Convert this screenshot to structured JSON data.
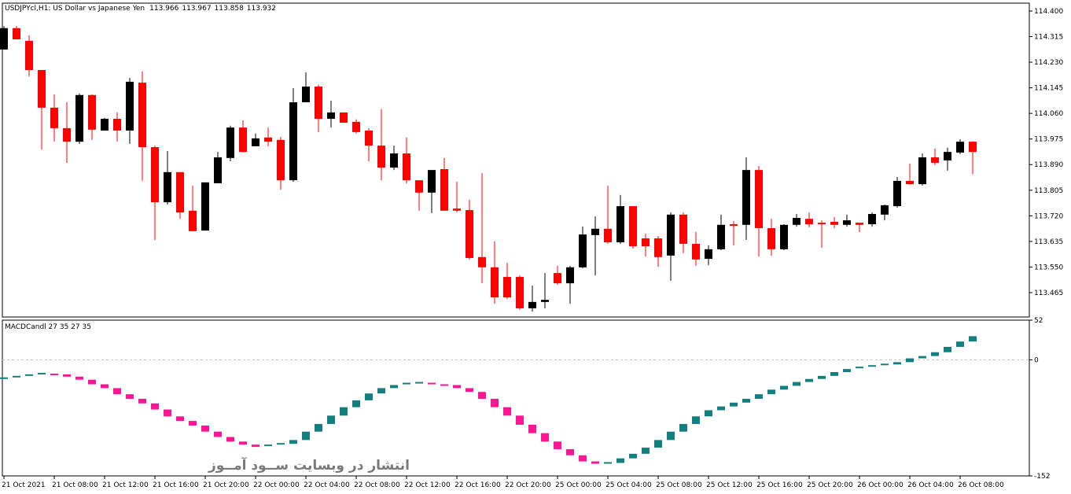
{
  "chart_data": [
    {
      "type": "candlestick",
      "title": "USDJPYcl,H1:  US Dollar vs Japanese Yen",
      "watermark": "انتشار در وبسایت  ســود آمــوز",
      "up_color": "#000000",
      "down_color": "#ff0000",
      "categories": [
        "21 Oct 2021",
        null,
        null,
        null,
        "21 Oct 08:00",
        null,
        null,
        null,
        "21 Oct 12:00",
        null,
        null,
        null,
        "21 Oct 16:00",
        null,
        null,
        null,
        "21 Oct 20:00",
        null,
        null,
        null,
        "22 Oct 00:00",
        null,
        null,
        null,
        "22 Oct 04:00",
        null,
        null,
        null,
        "22 Oct 08:00",
        null,
        null,
        null,
        "22 Oct 12:00",
        null,
        null,
        null,
        "22 Oct 16:00",
        null,
        null,
        null,
        "22 Oct 20:00",
        null,
        null,
        null,
        "25 Oct 00:00",
        null,
        null,
        null,
        "25 Oct 04:00",
        null,
        null,
        null,
        "25 Oct 08:00",
        null,
        null,
        null,
        "25 Oct 12:00",
        null,
        null,
        null,
        "25 Oct 16:00",
        null,
        null,
        null,
        "25 Oct 20:00",
        null,
        null,
        null,
        "26 Oct 00:00",
        null,
        null,
        null,
        "26 Oct 04:00",
        null,
        null,
        null,
        "26 Oct 08:00",
        null
      ],
      "open": [
        114.272,
        114.343,
        114.301,
        114.204,
        114.079,
        114.011,
        113.966,
        114.121,
        114.003,
        114.042,
        114.003,
        114.162,
        113.948,
        113.765,
        113.865,
        113.737,
        113.671,
        113.828,
        113.912,
        114.013,
        113.951,
        113.98,
        113.972,
        113.838,
        114.097,
        114.149,
        114.042,
        114.063,
        114.032,
        114.003,
        113.953,
        113.88,
        113.927,
        113.838,
        113.797,
        113.875,
        113.744,
        113.739,
        113.583,
        113.549,
        113.517,
        113.517,
        113.413,
        113.434,
        113.53,
        113.496,
        113.549,
        113.656,
        113.677,
        113.632,
        113.752,
        113.645,
        113.645,
        113.588,
        113.724,
        113.627,
        113.577,
        113.609,
        113.692,
        113.69,
        113.872,
        113.679,
        113.609,
        113.69,
        113.71,
        113.697,
        113.7,
        113.69,
        113.697,
        113.692,
        113.724,
        113.752,
        113.836,
        113.825,
        113.914,
        113.904,
        113.93,
        113.966
      ],
      "high": [
        114.35,
        114.35,
        114.319,
        114.204,
        114.123,
        114.097,
        114.126,
        114.123,
        114.045,
        114.063,
        114.178,
        114.199,
        113.953,
        113.935,
        113.865,
        113.82,
        113.831,
        113.932,
        114.019,
        114.037,
        113.993,
        114.013,
        113.982,
        114.144,
        114.196,
        114.155,
        114.102,
        114.063,
        114.04,
        114.011,
        114.074,
        113.953,
        113.98,
        113.838,
        113.872,
        113.912,
        113.833,
        113.773,
        113.862,
        113.635,
        113.564,
        113.522,
        113.488,
        113.53,
        113.554,
        113.554,
        113.684,
        113.718,
        113.82,
        113.789,
        113.752,
        113.661,
        113.653,
        113.731,
        113.731,
        113.666,
        113.622,
        113.724,
        113.703,
        113.914,
        113.885,
        113.71,
        113.692,
        113.726,
        113.731,
        113.705,
        113.716,
        113.724,
        113.697,
        113.731,
        113.757,
        113.849,
        113.893,
        113.927,
        113.943,
        113.946,
        113.974,
        113.967
      ],
      "low": [
        114.272,
        114.306,
        114.183,
        113.94,
        113.966,
        113.896,
        113.959,
        113.972,
        114.003,
        113.966,
        113.959,
        113.836,
        113.64,
        113.757,
        113.71,
        113.669,
        113.671,
        113.828,
        113.901,
        113.93,
        113.951,
        113.951,
        113.807,
        113.833,
        114.097,
        113.998,
        114.013,
        114.029,
        113.993,
        113.901,
        113.838,
        113.872,
        113.828,
        113.737,
        113.729,
        113.737,
        113.731,
        113.575,
        113.496,
        113.428,
        113.444,
        113.408,
        113.402,
        113.413,
        113.491,
        113.428,
        113.546,
        113.522,
        113.627,
        113.627,
        113.611,
        113.585,
        113.551,
        113.504,
        113.596,
        113.554,
        113.556,
        113.606,
        113.622,
        113.64,
        113.585,
        113.588,
        113.606,
        113.684,
        113.682,
        113.614,
        113.679,
        113.684,
        113.666,
        113.684,
        113.705,
        113.747,
        113.823,
        113.82,
        113.888,
        113.87,
        113.925,
        113.858
      ],
      "close": [
        114.343,
        114.306,
        114.204,
        114.079,
        114.011,
        113.966,
        114.121,
        114.006,
        114.042,
        114.003,
        114.165,
        113.948,
        113.765,
        113.865,
        113.731,
        113.669,
        113.831,
        113.914,
        114.013,
        113.932,
        113.977,
        113.966,
        113.838,
        114.097,
        114.149,
        114.042,
        114.063,
        114.029,
        113.998,
        113.953,
        113.88,
        113.927,
        113.838,
        113.797,
        113.872,
        113.737,
        113.737,
        113.58,
        113.549,
        113.449,
        113.449,
        113.413,
        113.434,
        113.441,
        113.496,
        113.549,
        113.658,
        113.677,
        113.632,
        113.752,
        113.619,
        113.619,
        113.583,
        113.724,
        113.627,
        113.575,
        113.609,
        113.69,
        113.687,
        113.872,
        113.679,
        113.609,
        113.69,
        113.713,
        113.692,
        113.692,
        113.69,
        113.705,
        113.69,
        113.726,
        113.755,
        113.836,
        113.825,
        113.914,
        113.896,
        113.932,
        113.966,
        113.932
      ],
      "ylim": [
        113.384,
        114.426
      ],
      "yticks": [
        {
          "value": 114.4,
          "label": "114.400"
        },
        {
          "value": 114.315,
          "label": "114.315"
        },
        {
          "value": 114.23,
          "label": "114.230"
        },
        {
          "value": 114.145,
          "label": "114.145"
        },
        {
          "value": 114.06,
          "label": "114.060"
        },
        {
          "value": 113.975,
          "label": "113.975"
        },
        {
          "value": 113.89,
          "label": "113.890"
        },
        {
          "value": 113.805,
          "label": "113.805"
        },
        {
          "value": 113.72,
          "label": "113.720"
        },
        {
          "value": 113.635,
          "label": "113.635"
        },
        {
          "value": 113.55,
          "label": "113.550"
        },
        {
          "value": 113.465,
          "label": "113.465"
        }
      ]
    },
    {
      "type": "macd-candles",
      "title": "MACDCandl 27 35 27 35",
      "up_color": "#138080",
      "down_color": "#ff1493",
      "values": [
        -24,
        -22,
        -20,
        -18,
        -19,
        -22,
        -26,
        -32,
        -37,
        -45,
        -51,
        -57,
        -65,
        -74,
        -80,
        -86,
        -94,
        -101,
        -107,
        -111,
        -114,
        -112,
        -110,
        -105,
        -94,
        -84,
        -73,
        -62,
        -53,
        -44,
        -37,
        -33,
        -31,
        -30,
        -31,
        -33,
        -37,
        -42,
        -51,
        -62,
        -73,
        -85,
        -96,
        -107,
        -117,
        -125,
        -133,
        -136,
        -135,
        -129,
        -123,
        -115,
        -105,
        -94,
        -84,
        -74,
        -66,
        -61,
        -56,
        -51,
        -45,
        -39,
        -34,
        -29,
        -25,
        -21,
        -16,
        -12,
        -10,
        -8,
        -6,
        -3,
        2,
        5,
        10,
        17,
        24,
        31
      ],
      "ylim": [
        -152,
        52
      ],
      "yticks": [
        -152,
        0,
        52
      ]
    }
  ]
}
